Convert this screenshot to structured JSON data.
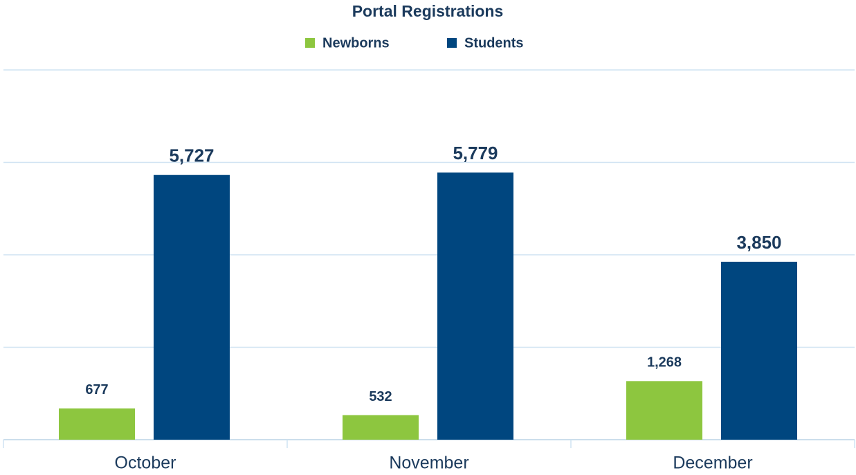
{
  "chart_data": {
    "type": "bar",
    "title": "Portal Registrations",
    "categories": [
      "October",
      "November",
      "December"
    ],
    "series": [
      {
        "name": "Newborns",
        "color": "#8dc63f",
        "values": [
          677,
          532,
          1268
        ],
        "value_labels": [
          "677",
          "532",
          "1,268"
        ]
      },
      {
        "name": "Students",
        "color": "#00467f",
        "values": [
          5727,
          5779,
          3850
        ],
        "value_labels": [
          "5,727",
          "5,779",
          "3,850"
        ]
      }
    ],
    "ylim": [
      0,
      8000
    ],
    "yticks": [
      0,
      2000,
      4000,
      6000,
      8000
    ],
    "grid": true,
    "legend": "top"
  }
}
